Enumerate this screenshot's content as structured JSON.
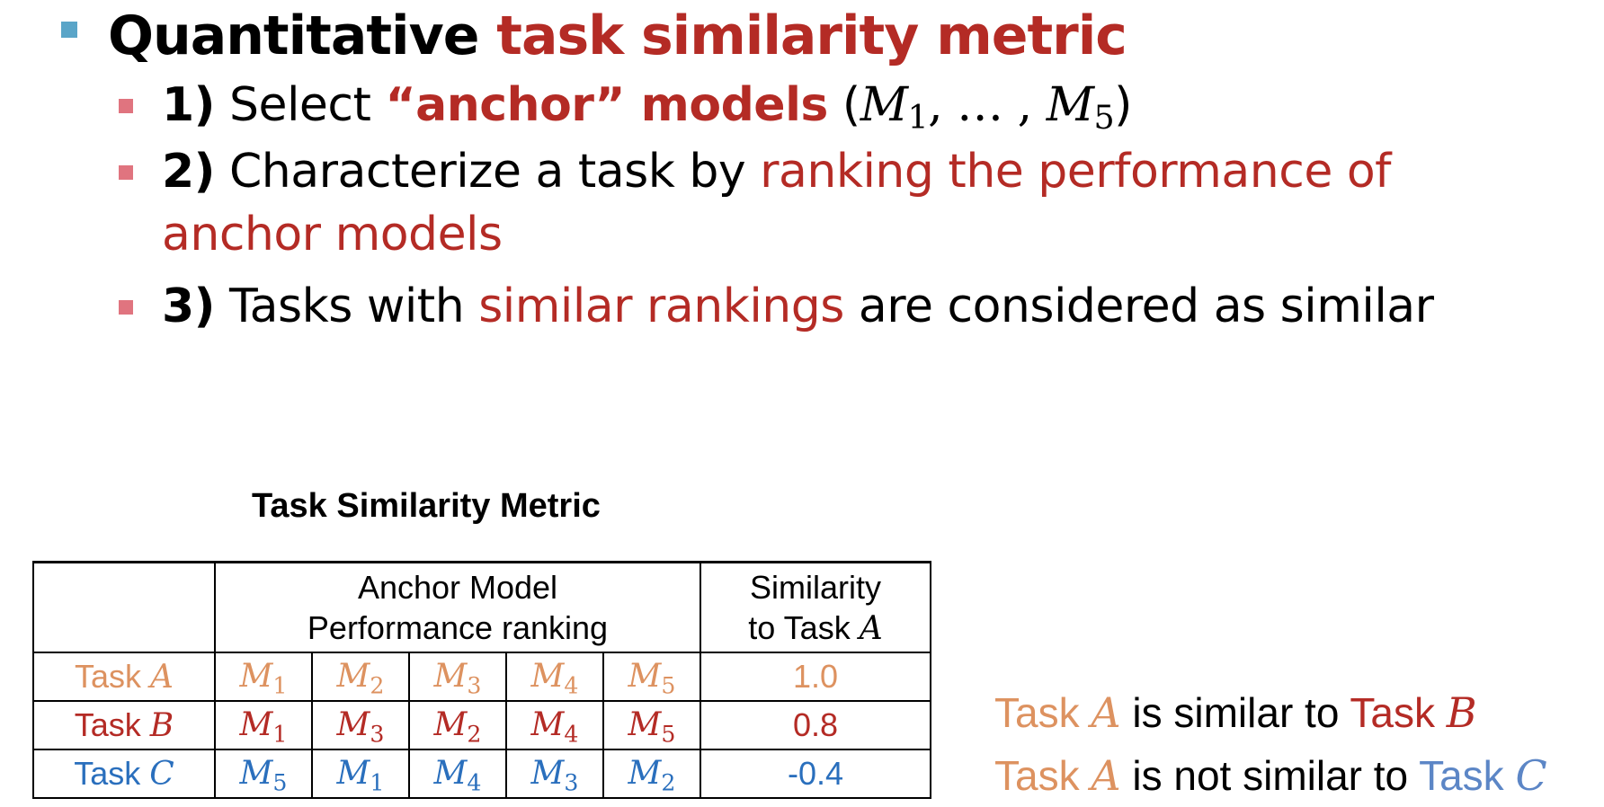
{
  "bullets": {
    "heading": {
      "prefix": "Quantitative ",
      "highlight": "task similarity metric"
    },
    "items": [
      {
        "number": "1)",
        "text_a": " Select ",
        "highlight": "“anchor” models",
        "text_b": " (",
        "math_a": "M",
        "sub_a": "1",
        "math_mid": ", … , ",
        "math_b": "M",
        "sub_b": "5",
        "text_c": ")"
      },
      {
        "number": "2)",
        "text_a": " Characterize a task by ",
        "highlight_line1": "ranking the performance of",
        "highlight_line2": "anchor models"
      },
      {
        "number": "3)",
        "text_a": " Tasks with ",
        "highlight": "similar rankings",
        "text_b": " are considered as similar"
      }
    ]
  },
  "table": {
    "title": "Task Similarity Metric",
    "header": {
      "ranking_line1": "Anchor Model",
      "ranking_line2": "Performance ranking",
      "similarity_line1": "Similarity",
      "similarity_line2": "to Task ",
      "similarity_var": "A"
    },
    "rows": [
      {
        "task_label": "Task ",
        "task_var": "A",
        "color": "#dd9260",
        "ranking": [
          {
            "m": "M",
            "sub": "1"
          },
          {
            "m": "M",
            "sub": "2"
          },
          {
            "m": "M",
            "sub": "3"
          },
          {
            "m": "M",
            "sub": "4"
          },
          {
            "m": "M",
            "sub": "5"
          }
        ],
        "similarity": "1.0"
      },
      {
        "task_label": "Task ",
        "task_var": "B",
        "color": "#b42b25",
        "ranking": [
          {
            "m": "M",
            "sub": "1"
          },
          {
            "m": "M",
            "sub": "3"
          },
          {
            "m": "M",
            "sub": "2"
          },
          {
            "m": "M",
            "sub": "4"
          },
          {
            "m": "M",
            "sub": "5"
          }
        ],
        "similarity": "0.8"
      },
      {
        "task_label": "Task ",
        "task_var": "C",
        "color": "#2a6fbd",
        "ranking": [
          {
            "m": "M",
            "sub": "5"
          },
          {
            "m": "M",
            "sub": "1"
          },
          {
            "m": "M",
            "sub": "4"
          },
          {
            "m": "M",
            "sub": "3"
          },
          {
            "m": "M",
            "sub": "2"
          }
        ],
        "similarity": "-0.4"
      }
    ]
  },
  "conclusions": [
    {
      "a_label": "Task ",
      "a_var": "A",
      "middle": " is similar to ",
      "b_label": "Task ",
      "b_var": "B"
    },
    {
      "a_label": "Task ",
      "a_var": "A",
      "middle": " is not similar to ",
      "b_label": "Task ",
      "b_var": "C"
    }
  ],
  "colors": {
    "bullet_level1": "#5aa5c8",
    "bullet_level2": "#e0747f",
    "highlight_red": "#b42b25",
    "task_a_orange": "#dd9260",
    "task_b_red": "#b42b25",
    "task_c_blue": "#2a6fbd",
    "task_c_conclusion_blue": "#5c86c6"
  }
}
